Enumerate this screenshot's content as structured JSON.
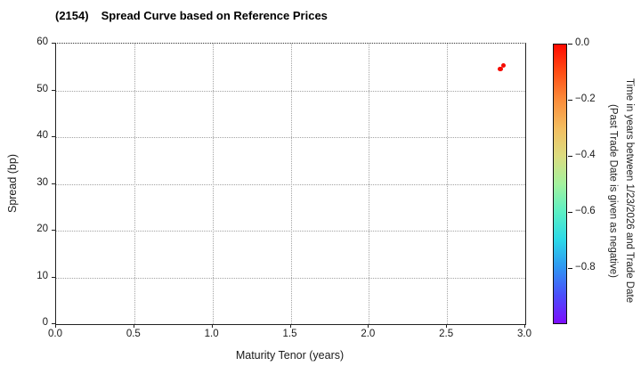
{
  "window": {
    "background": "#ffffff"
  },
  "title": {
    "ticker": "(2154)",
    "text": "Spread Curve based on Reference Prices"
  },
  "chart_data": {
    "type": "scatter",
    "title": "(2154)  Spread Curve based on Reference Prices",
    "xlabel": "Maturity Tenor (years)",
    "ylabel": "Spread (bp)",
    "xlim": [
      0.0,
      3.0
    ],
    "ylim": [
      0,
      60
    ],
    "xticks": [
      "0.0",
      "0.5",
      "1.0",
      "1.5",
      "2.0",
      "2.5",
      "3.0"
    ],
    "yticks": [
      "0",
      "10",
      "20",
      "30",
      "40",
      "50",
      "60"
    ],
    "grid": {
      "visible": true,
      "style": "dotted",
      "color": "#a3a3a3"
    },
    "series": [
      {
        "name": "trades",
        "marker": "circle",
        "marker_color": "#f50b00",
        "points": [
          {
            "x": 2.84,
            "y": 54.6,
            "color_value": 0.0
          },
          {
            "x": 2.86,
            "y": 55.3,
            "color_value": 0.0
          }
        ]
      }
    ],
    "colorbar": {
      "colormap": "rainbow",
      "range_top": 0.0,
      "range_bottom": -1.0,
      "ticks": [
        {
          "label": "0.0",
          "value": 0.0
        },
        {
          "label": "−0.2",
          "value": -0.2
        },
        {
          "label": "−0.4",
          "value": -0.4
        },
        {
          "label": "−0.6",
          "value": -0.6
        },
        {
          "label": "−0.8",
          "value": -0.8
        }
      ],
      "gradient": [
        {
          "pos": 0,
          "color": "#ff0a00"
        },
        {
          "pos": 10,
          "color": "#ff4e15"
        },
        {
          "pos": 20,
          "color": "#fb8d3b"
        },
        {
          "pos": 30,
          "color": "#f3bd60"
        },
        {
          "pos": 40,
          "color": "#dcdc80"
        },
        {
          "pos": 50,
          "color": "#a4f29e"
        },
        {
          "pos": 60,
          "color": "#5cf0c4"
        },
        {
          "pos": 70,
          "color": "#2cd9e7"
        },
        {
          "pos": 80,
          "color": "#2f96f2"
        },
        {
          "pos": 90,
          "color": "#4b4efb"
        },
        {
          "pos": 100,
          "color": "#7c0dfd"
        }
      ],
      "label_line1": "Time in years between 1/23/2026 and Trade Date",
      "label_line2": "(Past Trade Date is given as negative)"
    }
  }
}
